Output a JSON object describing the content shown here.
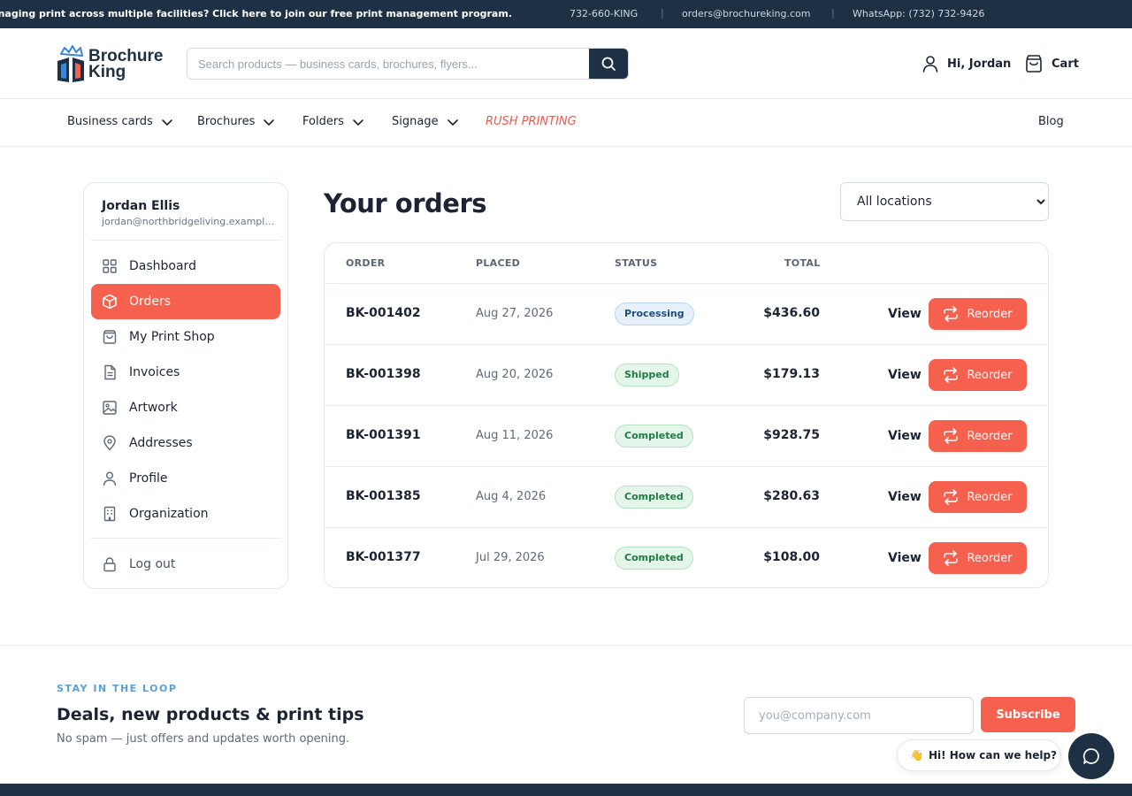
{
  "topbar": {
    "promo": "Managing print across multiple facilities? Click here to join our free print management program.",
    "phone": "732-660-KING",
    "email": "orders@brochureking.com",
    "whatsapp": "WhatsApp: (732) 732-9426",
    "separator": "|"
  },
  "header": {
    "logo_line1": "Brochure",
    "logo_line2": "King",
    "search_placeholder": "Search products — business cards, brochures, flyers...",
    "account_label": "Hi, Jordan",
    "cart_label": "Cart"
  },
  "nav": {
    "items": [
      "Business cards",
      "Brochures",
      "Folders",
      "Signage"
    ],
    "rush": "RUSH PRINTING",
    "blog": "Blog"
  },
  "sidebar": {
    "user_name": "Jordan Ellis",
    "user_email": "jordan@northbridgeliving.example.com",
    "items": [
      {
        "label": "Dashboard",
        "icon": "grid-icon"
      },
      {
        "label": "Orders",
        "icon": "box-icon"
      },
      {
        "label": "My Print Shop",
        "icon": "shopping-bag-icon"
      },
      {
        "label": "Invoices",
        "icon": "document-icon"
      },
      {
        "label": "Artwork",
        "icon": "image-icon"
      },
      {
        "label": "Addresses",
        "icon": "map-pin-icon"
      },
      {
        "label": "Profile",
        "icon": "user-icon"
      },
      {
        "label": "Organization",
        "icon": "building-icon"
      }
    ],
    "active_item": "Orders",
    "logout": "Log out"
  },
  "main": {
    "title": "Your orders",
    "location_filter": {
      "selected": "All locations",
      "options": [
        "All locations"
      ]
    },
    "columns": [
      "ORDER",
      "PLACED",
      "STATUS",
      "TOTAL"
    ],
    "view_label": "View",
    "reorder_label": "Reorder",
    "orders": [
      {
        "id": "BK-001402",
        "placed": "Aug 27, 2026",
        "status": "Processing",
        "total": "$436.60"
      },
      {
        "id": "BK-001398",
        "placed": "Aug 20, 2026",
        "status": "Shipped",
        "total": "$179.13"
      },
      {
        "id": "BK-001391",
        "placed": "Aug 11, 2026",
        "status": "Completed",
        "total": "$928.75"
      },
      {
        "id": "BK-001385",
        "placed": "Aug 4, 2026",
        "status": "Completed",
        "total": "$280.63"
      },
      {
        "id": "BK-001377",
        "placed": "Jul 29, 2026",
        "status": "Completed",
        "total": "$108.00"
      }
    ]
  },
  "newsletter": {
    "kicker": "STAY IN THE LOOP",
    "title": "Deals, new products & print tips",
    "subtitle": "No spam — just offers and updates worth opening.",
    "email_placeholder": "you@company.com",
    "button": "Subscribe"
  },
  "chat": {
    "greeting": "Hi! How can we help?",
    "emoji": "👋"
  },
  "colors": {
    "navy": "#1e3044",
    "accent": "#f5604f",
    "rush": "#f0584a",
    "link_blue": "#5aa0d8",
    "status_processing": "#1f4d7a",
    "status_completed": "#1f7a44"
  }
}
